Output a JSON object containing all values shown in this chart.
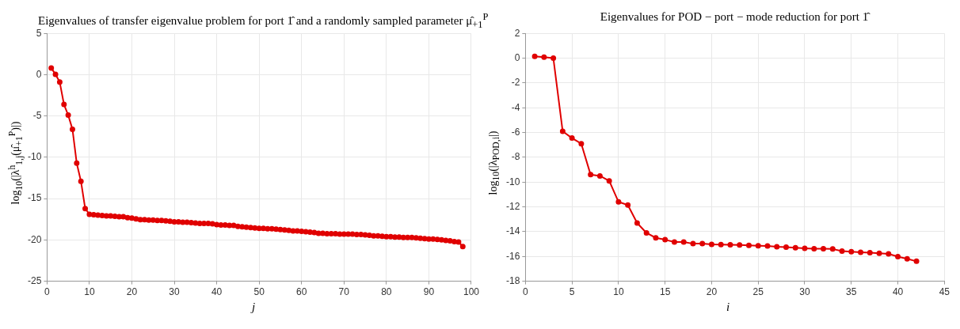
{
  "chart_data": [
    {
      "type": "line",
      "title": "Eigenvalues of transfer eigenvalue problem for port 1̂ and a randomly sampled parameter μ̂$_{+1}$$^{P}$",
      "xlabel": "j",
      "ylabel": "log$_{10}$(|λ$^{h}$$_{1,j}$(μ̂$_{+1}$$^{P}$)|)",
      "x": [
        1,
        2,
        3,
        4,
        5,
        6,
        7,
        8,
        9,
        10,
        11,
        12,
        13,
        14,
        15,
        16,
        17,
        18,
        19,
        20,
        21,
        22,
        23,
        24,
        25,
        26,
        27,
        28,
        29,
        30,
        31,
        32,
        33,
        34,
        35,
        36,
        37,
        38,
        39,
        40,
        41,
        42,
        43,
        44,
        45,
        46,
        47,
        48,
        49,
        50,
        51,
        52,
        53,
        54,
        55,
        56,
        57,
        58,
        59,
        60,
        61,
        62,
        63,
        64,
        65,
        66,
        67,
        68,
        69,
        70,
        71,
        72,
        73,
        74,
        75,
        76,
        77,
        78,
        79,
        80,
        81,
        82,
        83,
        84,
        85,
        86,
        87,
        88,
        89,
        90,
        91,
        92,
        93,
        94,
        95,
        96,
        97,
        98
      ],
      "values": [
        0.8,
        0.05,
        -0.9,
        -3.6,
        -4.9,
        -6.6,
        -10.7,
        -12.9,
        -16.2,
        -16.9,
        -16.95,
        -17.0,
        -17.05,
        -17.1,
        -17.1,
        -17.15,
        -17.2,
        -17.2,
        -17.3,
        -17.35,
        -17.45,
        -17.55,
        -17.55,
        -17.6,
        -17.6,
        -17.65,
        -17.65,
        -17.7,
        -17.75,
        -17.8,
        -17.8,
        -17.85,
        -17.85,
        -17.9,
        -17.95,
        -18.0,
        -18.0,
        -18.0,
        -18.05,
        -18.15,
        -18.2,
        -18.2,
        -18.25,
        -18.25,
        -18.35,
        -18.4,
        -18.45,
        -18.5,
        -18.55,
        -18.6,
        -18.6,
        -18.65,
        -18.65,
        -18.7,
        -18.75,
        -18.8,
        -18.85,
        -18.9,
        -18.9,
        -18.95,
        -19.0,
        -19.05,
        -19.1,
        -19.2,
        -19.2,
        -19.25,
        -19.25,
        -19.25,
        -19.3,
        -19.3,
        -19.3,
        -19.3,
        -19.35,
        -19.35,
        -19.4,
        -19.45,
        -19.5,
        -19.5,
        -19.55,
        -19.6,
        -19.6,
        -19.65,
        -19.65,
        -19.7,
        -19.7,
        -19.7,
        -19.75,
        -19.8,
        -19.85,
        -19.9,
        -19.9,
        -19.95,
        -20.0,
        -20.05,
        -20.1,
        -20.2,
        -20.25,
        -20.8
      ],
      "color": "#e00000",
      "marker": "circle",
      "grid": true,
      "xlim": [
        0,
        100
      ],
      "xticks": [
        0,
        10,
        20,
        30,
        40,
        50,
        60,
        70,
        80,
        90,
        100
      ],
      "ylim": [
        -25,
        5
      ],
      "yticks": [
        -25,
        -20,
        -15,
        -10,
        -5,
        0,
        5
      ]
    },
    {
      "type": "line",
      "title": "Eigenvalues for POD  −  port − mode reduction for port 1̂",
      "xlabel": "i",
      "ylabel": "log$_{10}$(|λ$_{POD,i}$|)",
      "x": [
        1,
        2,
        3,
        4,
        5,
        6,
        7,
        8,
        9,
        10,
        11,
        12,
        13,
        14,
        15,
        16,
        17,
        18,
        19,
        20,
        21,
        22,
        23,
        24,
        25,
        26,
        27,
        28,
        29,
        30,
        31,
        32,
        33,
        34,
        35,
        36,
        37,
        38,
        39,
        40,
        41,
        42
      ],
      "values": [
        0.15,
        0.08,
        0,
        -5.9,
        -6.45,
        -6.9,
        -9.4,
        -9.5,
        -9.9,
        -11.6,
        -11.85,
        -13.3,
        -14.1,
        -14.5,
        -14.65,
        -14.83,
        -14.83,
        -14.97,
        -14.97,
        -15.02,
        -15.04,
        -15.06,
        -15.08,
        -15.1,
        -15.13,
        -15.15,
        -15.21,
        -15.25,
        -15.3,
        -15.34,
        -15.38,
        -15.38,
        -15.4,
        -15.57,
        -15.62,
        -15.66,
        -15.7,
        -15.75,
        -15.79,
        -16.02,
        -16.19,
        -16.39
      ],
      "color": "#e00000",
      "marker": "circle",
      "grid": true,
      "xlim": [
        0,
        45
      ],
      "xticks": [
        0,
        5,
        10,
        15,
        20,
        25,
        30,
        35,
        40,
        45
      ],
      "ylim": [
        -18,
        2
      ],
      "yticks": [
        -18,
        -16,
        -14,
        -12,
        -10,
        -8,
        -6,
        -4,
        -2,
        0,
        2
      ]
    }
  ]
}
